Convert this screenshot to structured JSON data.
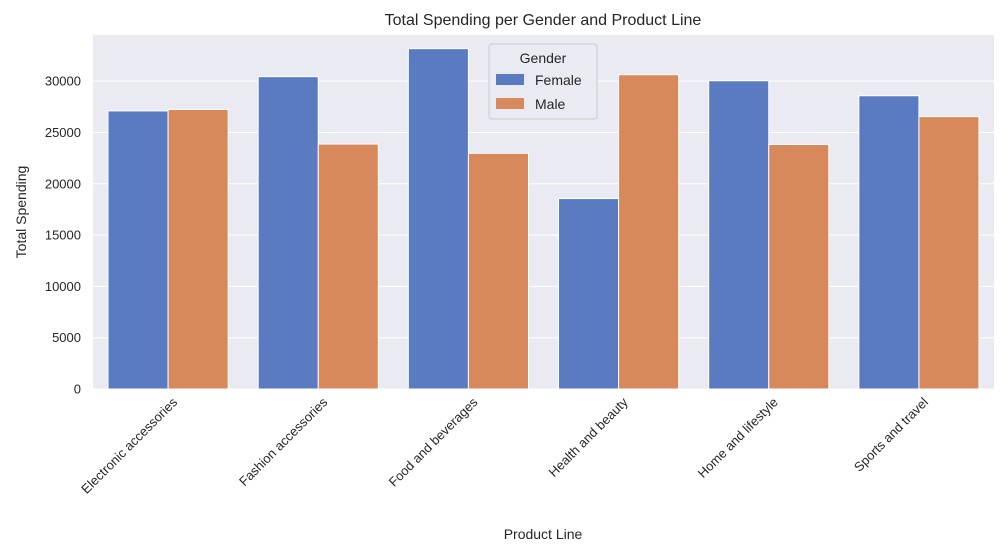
{
  "chart_data": {
    "type": "bar",
    "title": "Total Spending per Gender and Product Line",
    "xlabel": "Product Line",
    "ylabel": "Total Spending",
    "categories": [
      "Electronic accessories",
      "Fashion accessories",
      "Food and beverages",
      "Health and beauty",
      "Home and lifestyle",
      "Sports and travel"
    ],
    "series": [
      {
        "name": "Female",
        "color": "#5a7bc2",
        "values": [
          27100,
          30440,
          33170,
          18560,
          30040,
          28580
        ]
      },
      {
        "name": "Male",
        "color": "#d8895c",
        "values": [
          27240,
          23870,
          22970,
          30630,
          23830,
          26550
        ]
      }
    ],
    "ylim": [
      0,
      34500
    ],
    "yticks": [
      0,
      5000,
      10000,
      15000,
      20000,
      25000,
      30000
    ],
    "grid": true,
    "legend": {
      "title": "Gender",
      "placement": "top-center"
    },
    "background_color": "#eaeaf2",
    "grid_color": "#ffffff"
  }
}
